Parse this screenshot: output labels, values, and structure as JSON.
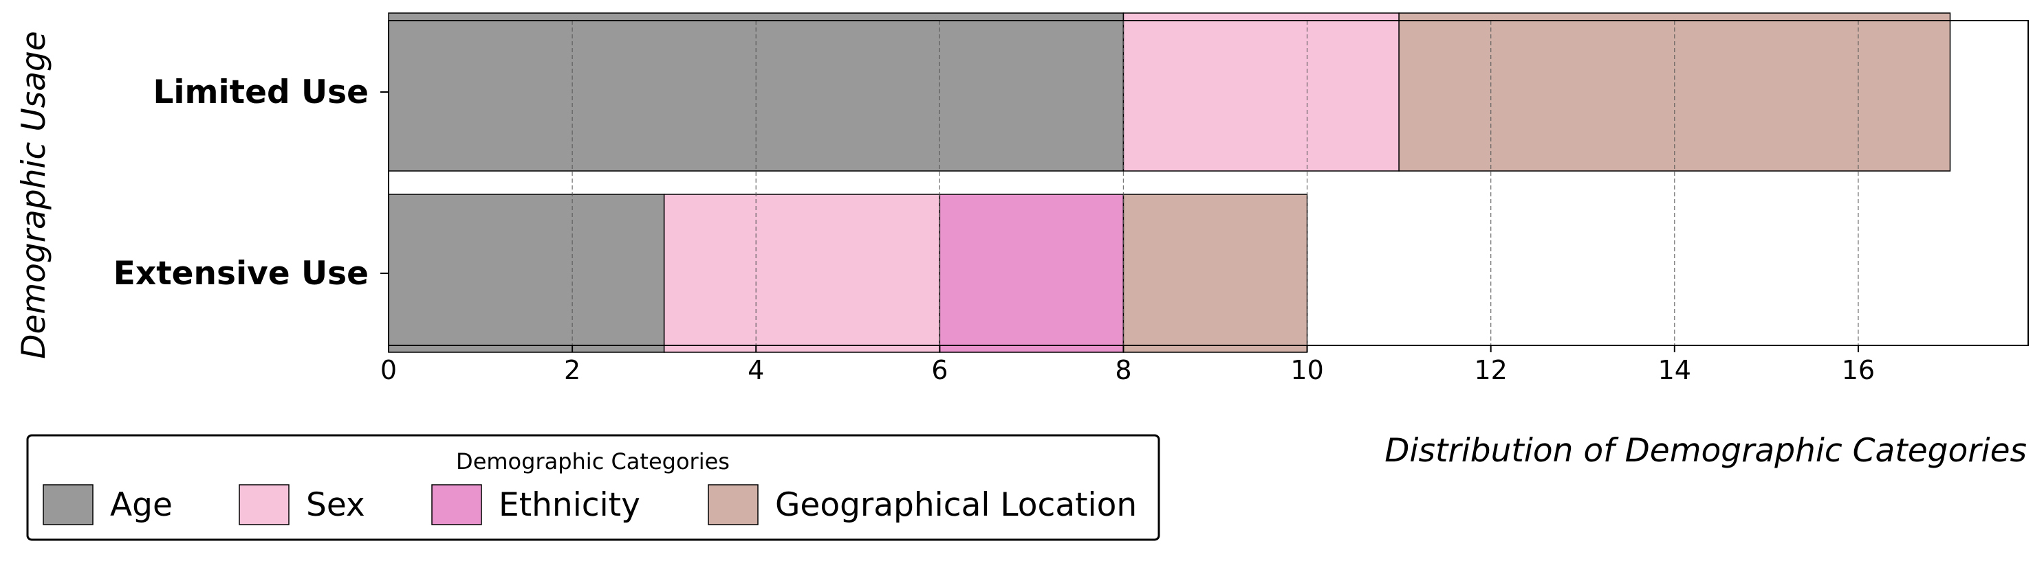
{
  "chart_data": {
    "type": "bar",
    "orientation": "horizontal",
    "stacked": true,
    "categories": [
      "Limited Use",
      "Extensive Use"
    ],
    "series": [
      {
        "name": "Age",
        "values": [
          8,
          3
        ],
        "color": "#999999"
      },
      {
        "name": "Sex",
        "values": [
          3,
          3
        ],
        "color": "#f7c3db"
      },
      {
        "name": "Ethnicity",
        "values": [
          0,
          2
        ],
        "color": "#e994cc"
      },
      {
        "name": "Geographical Location",
        "values": [
          6,
          2
        ],
        "color": "#d0b0a7"
      }
    ],
    "xlabel": "Distribution of Demographic Categories",
    "ylabel": "Demographic Usage",
    "xlim": [
      0,
      17.85
    ],
    "xticks": [
      0,
      2,
      4,
      6,
      8,
      10,
      12,
      14,
      16
    ],
    "grid": "x-dashed",
    "legend": {
      "title": "Demographic Categories",
      "placement": "bottom-left"
    }
  }
}
